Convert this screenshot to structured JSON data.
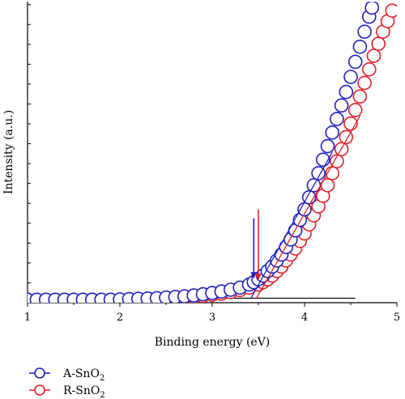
{
  "chart_data": {
    "type": "scatter",
    "title": "",
    "xlabel": "Binding energy (eV)",
    "ylabel": "Intensity (a.u.)",
    "xlim": [
      1,
      5
    ],
    "ylim": [
      0,
      100
    ],
    "x_ticks": [
      "1",
      "2",
      "3",
      "4",
      "5"
    ],
    "grid": false,
    "legend_position": "bottom-left",
    "series": [
      {
        "name": "A-SnO",
        "name_sub": "2",
        "color": "#1f1fbf",
        "points": [
          [
            1.0,
            1.0
          ],
          [
            1.1,
            1.0
          ],
          [
            1.2,
            1.0
          ],
          [
            1.3,
            1.0
          ],
          [
            1.4,
            1.0
          ],
          [
            1.5,
            1.0
          ],
          [
            1.6,
            1.0
          ],
          [
            1.7,
            1.0
          ],
          [
            1.8,
            1.0
          ],
          [
            1.9,
            1.0
          ],
          [
            2.0,
            1.1
          ],
          [
            2.1,
            1.2
          ],
          [
            2.2,
            1.3
          ],
          [
            2.3,
            1.4
          ],
          [
            2.4,
            1.5
          ],
          [
            2.5,
            1.7
          ],
          [
            2.6,
            1.9
          ],
          [
            2.7,
            2.1
          ],
          [
            2.8,
            2.4
          ],
          [
            2.9,
            2.8
          ],
          [
            3.0,
            3.2
          ],
          [
            3.1,
            3.7
          ],
          [
            3.2,
            4.3
          ],
          [
            3.3,
            5.0
          ],
          [
            3.4,
            6.0
          ],
          [
            3.45,
            6.8
          ],
          [
            3.5,
            7.8
          ],
          [
            3.55,
            9.0
          ],
          [
            3.6,
            10.5
          ],
          [
            3.65,
            12.0
          ],
          [
            3.7,
            14.0
          ],
          [
            3.75,
            16.0
          ],
          [
            3.8,
            18.5
          ],
          [
            3.85,
            21.0
          ],
          [
            3.9,
            24.0
          ],
          [
            3.95,
            27.5
          ],
          [
            4.0,
            31.0
          ],
          [
            4.05,
            35.0
          ],
          [
            4.1,
            39.0
          ],
          [
            4.15,
            43.0
          ],
          [
            4.2,
            47.5
          ],
          [
            4.25,
            52.0
          ],
          [
            4.3,
            56.5
          ],
          [
            4.35,
            61.0
          ],
          [
            4.4,
            65.5
          ],
          [
            4.45,
            70.0
          ],
          [
            4.5,
            75.0
          ],
          [
            4.55,
            80.0
          ],
          [
            4.6,
            85.0
          ],
          [
            4.65,
            90.0
          ],
          [
            4.7,
            95.0
          ],
          [
            4.73,
            98.0
          ]
        ]
      },
      {
        "name": "R-SnO",
        "name_sub": "2",
        "color": "#e0202a",
        "points": [
          [
            1.0,
            0.8
          ],
          [
            1.1,
            0.8
          ],
          [
            1.2,
            0.8
          ],
          [
            1.3,
            0.8
          ],
          [
            1.4,
            0.8
          ],
          [
            1.5,
            0.8
          ],
          [
            1.6,
            0.8
          ],
          [
            1.7,
            0.8
          ],
          [
            1.8,
            0.8
          ],
          [
            1.9,
            0.8
          ],
          [
            2.0,
            0.9
          ],
          [
            2.1,
            0.9
          ],
          [
            2.2,
            1.0
          ],
          [
            2.3,
            1.1
          ],
          [
            2.4,
            1.2
          ],
          [
            2.5,
            1.3
          ],
          [
            2.6,
            1.5
          ],
          [
            2.7,
            1.7
          ],
          [
            2.8,
            1.9
          ],
          [
            2.9,
            2.2
          ],
          [
            3.0,
            2.6
          ],
          [
            3.1,
            3.0
          ],
          [
            3.2,
            3.5
          ],
          [
            3.3,
            4.2
          ],
          [
            3.4,
            5.0
          ],
          [
            3.5,
            6.0
          ],
          [
            3.55,
            6.8
          ],
          [
            3.6,
            7.8
          ],
          [
            3.65,
            9.0
          ],
          [
            3.7,
            10.5
          ],
          [
            3.75,
            12.0
          ],
          [
            3.8,
            14.0
          ],
          [
            3.85,
            16.0
          ],
          [
            3.9,
            18.0
          ],
          [
            3.95,
            20.5
          ],
          [
            4.0,
            23.0
          ],
          [
            4.05,
            26.0
          ],
          [
            4.1,
            29.0
          ],
          [
            4.15,
            32.0
          ],
          [
            4.2,
            35.5
          ],
          [
            4.25,
            39.0
          ],
          [
            4.3,
            43.0
          ],
          [
            4.35,
            47.0
          ],
          [
            4.4,
            51.0
          ],
          [
            4.45,
            55.0
          ],
          [
            4.5,
            59.5
          ],
          [
            4.55,
            64.0
          ],
          [
            4.6,
            68.5
          ],
          [
            4.65,
            73.0
          ],
          [
            4.7,
            77.5
          ],
          [
            4.75,
            82.0
          ],
          [
            4.8,
            86.0
          ],
          [
            4.85,
            90.0
          ],
          [
            4.9,
            93.5
          ],
          [
            4.95,
            97.0
          ]
        ]
      }
    ],
    "baseline": {
      "x": [
        1.0,
        4.55
      ],
      "y": 1.5,
      "color": "#000000"
    },
    "tangent_lines": [
      {
        "color": "#1f1fbf",
        "x": [
          3.42,
          4.3
        ],
        "y": [
          1.5,
          50.0
        ]
      },
      {
        "color": "#e0202a",
        "x": [
          3.48,
          4.6
        ],
        "y": [
          1.5,
          62.0
        ]
      }
    ],
    "arrows": [
      {
        "color": "#1f1fbf",
        "x": 3.45,
        "y_from": 28.0,
        "y_to": 8.0
      },
      {
        "color": "#e0202a",
        "x": 3.5,
        "y_from": 31.0,
        "y_to": 7.5
      }
    ]
  }
}
